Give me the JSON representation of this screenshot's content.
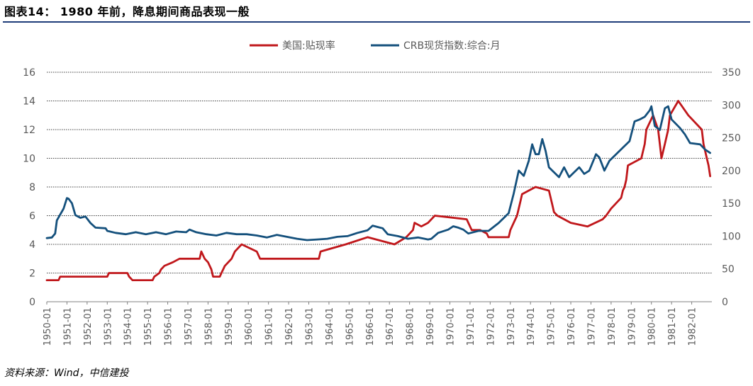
{
  "header": {
    "title": "图表14： 1980 年前，降息期间商品表现一般"
  },
  "footer": {
    "source": "资料来源：Wind，中信建投"
  },
  "colors": {
    "rate": "#c0171b",
    "crb": "#14507c",
    "grid": "#000000",
    "rule": "#1f3d7a"
  },
  "chart_data": {
    "type": "line",
    "title": "",
    "x_start": "1950-01",
    "x_end": "1983-01",
    "x_ticks": [
      "1950-01",
      "1951-01",
      "1952-01",
      "1953-01",
      "1954-01",
      "1955-01",
      "1956-01",
      "1957-01",
      "1958-01",
      "1959-01",
      "1960-01",
      "1961-01",
      "1962-01",
      "1963-01",
      "1964-01",
      "1965-01",
      "1966-01",
      "1967-01",
      "1968-01",
      "1969-01",
      "1970-01",
      "1971-01",
      "1972-01",
      "1973-01",
      "1974-01",
      "1975-01",
      "1976-01",
      "1977-01",
      "1978-01",
      "1979-01",
      "1980-01",
      "1981-01",
      "1982-01"
    ],
    "y_left": {
      "min": 0,
      "max": 16,
      "ticks": [
        "0",
        "2",
        "4",
        "6",
        "8",
        "10",
        "12",
        "14",
        "16"
      ]
    },
    "y_right": {
      "min": 0,
      "max": 350,
      "ticks": [
        "0",
        "50",
        "100",
        "150",
        "200",
        "250",
        "300",
        "350"
      ]
    },
    "legend_position": "top-center",
    "series": [
      {
        "name": "美国:贴现率",
        "axis": "left",
        "color": "#c0171b",
        "points": [
          [
            "1950-01",
            1.5
          ],
          [
            "1950-08",
            1.5
          ],
          [
            "1950-09",
            1.75
          ],
          [
            "1953-01",
            1.75
          ],
          [
            "1953-02",
            2.0
          ],
          [
            "1954-01",
            2.0
          ],
          [
            "1954-02",
            1.75
          ],
          [
            "1954-04",
            1.5
          ],
          [
            "1955-04",
            1.5
          ],
          [
            "1955-05",
            1.75
          ],
          [
            "1955-08",
            2.0
          ],
          [
            "1955-09",
            2.25
          ],
          [
            "1955-11",
            2.5
          ],
          [
            "1956-04",
            2.75
          ],
          [
            "1956-08",
            3.0
          ],
          [
            "1957-08",
            3.0
          ],
          [
            "1957-09",
            3.5
          ],
          [
            "1957-11",
            3.0
          ],
          [
            "1958-01",
            2.75
          ],
          [
            "1958-03",
            2.25
          ],
          [
            "1958-04",
            1.75
          ],
          [
            "1958-08",
            1.75
          ],
          [
            "1958-09",
            2.0
          ],
          [
            "1958-11",
            2.5
          ],
          [
            "1959-03",
            3.0
          ],
          [
            "1959-05",
            3.5
          ],
          [
            "1959-09",
            4.0
          ],
          [
            "1960-06",
            3.5
          ],
          [
            "1960-08",
            3.0
          ],
          [
            "1963-07",
            3.0
          ],
          [
            "1963-08",
            3.5
          ],
          [
            "1964-11",
            4.0
          ],
          [
            "1965-12",
            4.5
          ],
          [
            "1967-04",
            4.0
          ],
          [
            "1967-11",
            4.5
          ],
          [
            "1968-03",
            5.0
          ],
          [
            "1968-04",
            5.5
          ],
          [
            "1968-08",
            5.25
          ],
          [
            "1968-12",
            5.5
          ],
          [
            "1969-04",
            6.0
          ],
          [
            "1970-11",
            5.75
          ],
          [
            "1970-12",
            5.5
          ],
          [
            "1971-01",
            5.25
          ],
          [
            "1971-02",
            5.0
          ],
          [
            "1971-07",
            5.0
          ],
          [
            "1971-11",
            4.75
          ],
          [
            "1971-12",
            4.5
          ],
          [
            "1972-12",
            4.5
          ],
          [
            "1973-01",
            5.0
          ],
          [
            "1973-03",
            5.5
          ],
          [
            "1973-05",
            6.0
          ],
          [
            "1973-06",
            6.5
          ],
          [
            "1973-07",
            7.0
          ],
          [
            "1973-08",
            7.5
          ],
          [
            "1974-04",
            8.0
          ],
          [
            "1974-12",
            7.75
          ],
          [
            "1975-01",
            7.25
          ],
          [
            "1975-02",
            6.75
          ],
          [
            "1975-03",
            6.25
          ],
          [
            "1975-05",
            6.0
          ],
          [
            "1976-01",
            5.5
          ],
          [
            "1976-11",
            5.25
          ],
          [
            "1977-08",
            5.75
          ],
          [
            "1977-10",
            6.0
          ],
          [
            "1978-01",
            6.5
          ],
          [
            "1978-05",
            7.0
          ],
          [
            "1978-07",
            7.25
          ],
          [
            "1978-08",
            7.75
          ],
          [
            "1978-09",
            8.0
          ],
          [
            "1978-10",
            8.5
          ],
          [
            "1978-11",
            9.5
          ],
          [
            "1979-07",
            10.0
          ],
          [
            "1979-08",
            10.5
          ],
          [
            "1979-09",
            11.0
          ],
          [
            "1979-10",
            12.0
          ],
          [
            "1980-02",
            13.0
          ],
          [
            "1980-05",
            12.0
          ],
          [
            "1980-06",
            11.0
          ],
          [
            "1980-07",
            10.0
          ],
          [
            "1980-09",
            11.0
          ],
          [
            "1980-11",
            12.0
          ],
          [
            "1980-12",
            13.0
          ],
          [
            "1981-05",
            14.0
          ],
          [
            "1981-11",
            13.0
          ],
          [
            "1982-07",
            12.0
          ],
          [
            "1982-08",
            11.0
          ],
          [
            "1982-10",
            10.0
          ],
          [
            "1982-11",
            9.5
          ],
          [
            "1982-12",
            8.75
          ]
        ]
      },
      {
        "name": "CRB现货指数:综合:月",
        "axis": "right",
        "color": "#14507c",
        "points": [
          [
            "1950-01",
            97
          ],
          [
            "1950-04",
            98
          ],
          [
            "1950-06",
            104
          ],
          [
            "1950-07",
            124
          ],
          [
            "1950-09",
            133
          ],
          [
            "1950-11",
            142
          ],
          [
            "1951-01",
            158
          ],
          [
            "1951-02",
            157
          ],
          [
            "1951-04",
            150
          ],
          [
            "1951-06",
            132
          ],
          [
            "1951-09",
            128
          ],
          [
            "1951-12",
            130
          ],
          [
            "1952-03",
            120
          ],
          [
            "1952-06",
            113
          ],
          [
            "1952-12",
            112
          ],
          [
            "1953-01",
            108
          ],
          [
            "1953-06",
            105
          ],
          [
            "1953-12",
            103
          ],
          [
            "1954-06",
            106
          ],
          [
            "1954-12",
            103
          ],
          [
            "1955-06",
            106
          ],
          [
            "1955-12",
            103
          ],
          [
            "1956-06",
            107
          ],
          [
            "1956-12",
            106
          ],
          [
            "1957-02",
            110
          ],
          [
            "1957-06",
            106
          ],
          [
            "1957-12",
            103
          ],
          [
            "1958-06",
            101
          ],
          [
            "1958-12",
            105
          ],
          [
            "1959-06",
            103
          ],
          [
            "1959-12",
            103
          ],
          [
            "1960-06",
            101
          ],
          [
            "1960-12",
            98
          ],
          [
            "1961-06",
            102
          ],
          [
            "1961-12",
            99
          ],
          [
            "1962-06",
            96
          ],
          [
            "1962-12",
            94
          ],
          [
            "1963-06",
            95
          ],
          [
            "1963-12",
            96
          ],
          [
            "1964-06",
            99
          ],
          [
            "1964-12",
            100
          ],
          [
            "1965-06",
            105
          ],
          [
            "1965-12",
            109
          ],
          [
            "1966-03",
            116
          ],
          [
            "1966-06",
            114
          ],
          [
            "1966-09",
            112
          ],
          [
            "1966-12",
            103
          ],
          [
            "1967-06",
            100
          ],
          [
            "1967-12",
            96
          ],
          [
            "1968-06",
            98
          ],
          [
            "1968-12",
            95
          ],
          [
            "1969-02",
            96
          ],
          [
            "1969-06",
            105
          ],
          [
            "1969-12",
            110
          ],
          [
            "1970-03",
            115
          ],
          [
            "1970-06",
            113
          ],
          [
            "1970-09",
            110
          ],
          [
            "1970-12",
            104
          ],
          [
            "1971-06",
            108
          ],
          [
            "1971-12",
            108
          ],
          [
            "1972-06",
            120
          ],
          [
            "1972-12",
            135
          ],
          [
            "1973-03",
            165
          ],
          [
            "1973-06",
            200
          ],
          [
            "1973-09",
            192
          ],
          [
            "1973-12",
            215
          ],
          [
            "1974-02",
            240
          ],
          [
            "1974-04",
            225
          ],
          [
            "1974-06",
            225
          ],
          [
            "1974-08",
            248
          ],
          [
            "1974-10",
            230
          ],
          [
            "1974-12",
            205
          ],
          [
            "1975-06",
            190
          ],
          [
            "1975-09",
            205
          ],
          [
            "1975-12",
            190
          ],
          [
            "1976-06",
            205
          ],
          [
            "1976-09",
            195
          ],
          [
            "1976-12",
            200
          ],
          [
            "1977-04",
            225
          ],
          [
            "1977-06",
            220
          ],
          [
            "1977-09",
            200
          ],
          [
            "1977-12",
            215
          ],
          [
            "1978-06",
            230
          ],
          [
            "1978-12",
            245
          ],
          [
            "1979-03",
            275
          ],
          [
            "1979-06",
            278
          ],
          [
            "1979-09",
            282
          ],
          [
            "1979-12",
            292
          ],
          [
            "1980-01",
            298
          ],
          [
            "1980-03",
            268
          ],
          [
            "1980-06",
            262
          ],
          [
            "1980-09",
            295
          ],
          [
            "1980-11",
            298
          ],
          [
            "1981-01",
            278
          ],
          [
            "1981-06",
            265
          ],
          [
            "1981-09",
            255
          ],
          [
            "1981-12",
            242
          ],
          [
            "1982-06",
            240
          ],
          [
            "1982-09",
            232
          ],
          [
            "1982-12",
            227
          ]
        ]
      }
    ]
  }
}
